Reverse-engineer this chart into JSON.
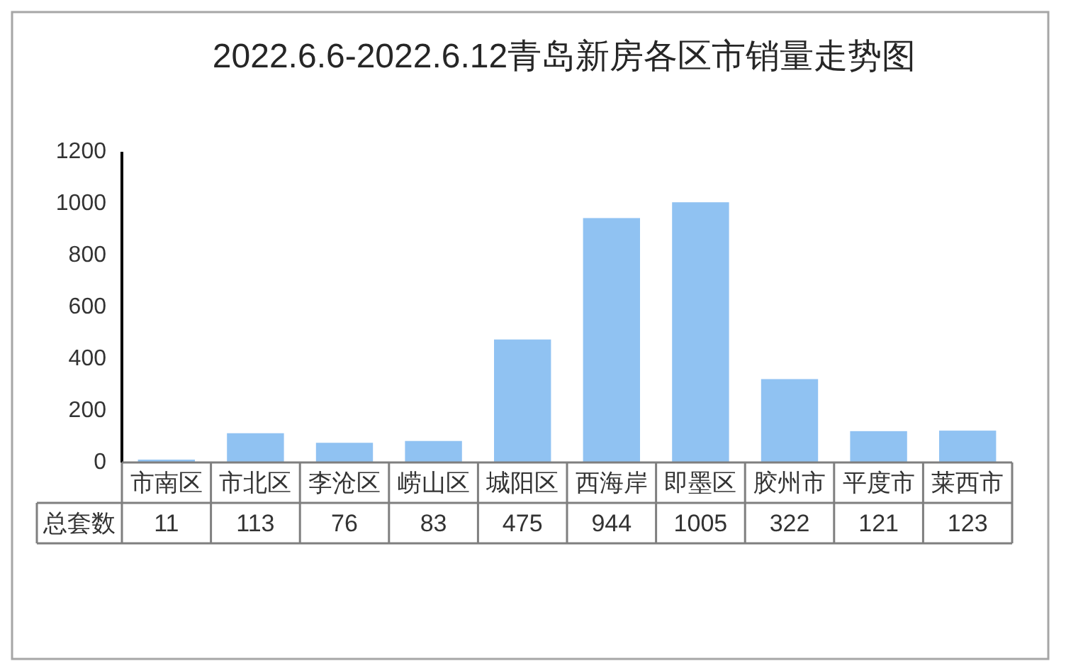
{
  "chart_data": {
    "type": "bar",
    "title": "2022.6.6-2022.6.12青岛新房各区市销量走势图",
    "categories": [
      "市南区",
      "市北区",
      "李沧区",
      "崂山区",
      "城阳区",
      "西海岸",
      "即墨区",
      "胶州市",
      "平度市",
      "莱西市"
    ],
    "series": [
      {
        "name": "总套数",
        "color": "#90c2f2",
        "values": [
          11,
          113,
          76,
          83,
          475,
          944,
          1005,
          322,
          121,
          123
        ]
      }
    ],
    "ylim": [
      0,
      1200
    ],
    "yticks": [
      0,
      200,
      400,
      600,
      800,
      1000,
      1200
    ],
    "data_labels": true
  }
}
